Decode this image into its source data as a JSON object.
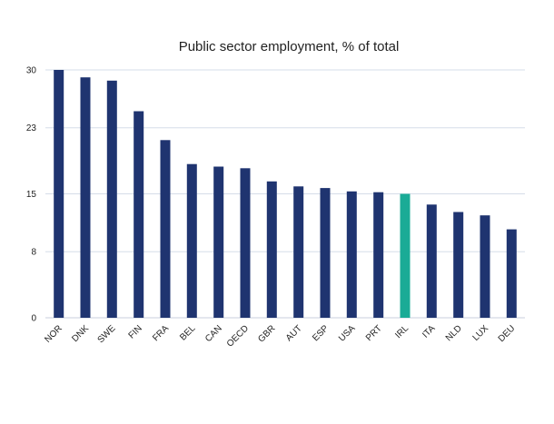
{
  "chart_data": {
    "type": "bar",
    "title": "Public sector employment, % of total",
    "xlabel": "",
    "ylabel": "",
    "categories": [
      "NOR",
      "DNK",
      "SWE",
      "FIN",
      "FRA",
      "BEL",
      "CAN",
      "OECD",
      "GBR",
      "AUT",
      "ESP",
      "USA",
      "PRT",
      "IRL",
      "ITA",
      "NLD",
      "LUX",
      "DEU"
    ],
    "values": [
      30.0,
      29.1,
      28.7,
      25.0,
      21.5,
      18.6,
      18.3,
      18.1,
      16.5,
      15.9,
      15.7,
      15.3,
      15.2,
      15.0,
      13.7,
      12.8,
      12.4,
      10.7
    ],
    "yticks": [
      "0",
      "8",
      "15",
      "23",
      "30"
    ],
    "ylim": [
      0,
      30
    ],
    "grid": true,
    "legend": "none",
    "colors": {
      "bar": "#1f3470",
      "highlight": "#1aab96",
      "grid": "#d6dde8",
      "axis": "#c8cfdc"
    },
    "highlight_category": "IRL"
  }
}
